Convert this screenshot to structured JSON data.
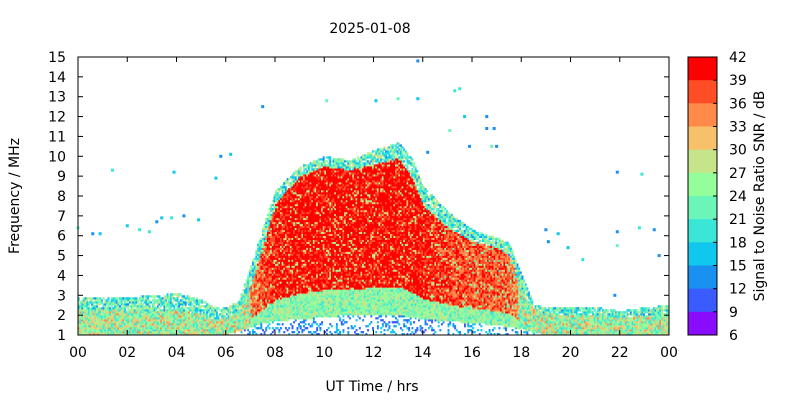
{
  "chart_data": {
    "type": "heatmap",
    "title": "2025-01-08",
    "xlabel": "UT Time / hrs",
    "ylabel": "Frequency / MHz",
    "xlim": [
      0,
      24
    ],
    "ylim": [
      1,
      15
    ],
    "x_ticks": [
      "00",
      "02",
      "04",
      "06",
      "08",
      "10",
      "12",
      "14",
      "16",
      "18",
      "20",
      "22",
      "00"
    ],
    "y_ticks": [
      "1",
      "2",
      "3",
      "4",
      "5",
      "6",
      "7",
      "8",
      "9",
      "10",
      "11",
      "12",
      "13",
      "14",
      "15"
    ],
    "colorbar": {
      "label": "Signal to Noise Ratio SNR / dB",
      "ticks": [
        "42",
        "39",
        "36",
        "33",
        "30",
        "27",
        "24",
        "21",
        "18",
        "15",
        "12",
        "9",
        "6"
      ],
      "range": [
        6,
        42
      ],
      "colors": [
        "#ff0000",
        "#ff4d26",
        "#ff8a4a",
        "#f7c06a",
        "#c6e48a",
        "#94ff9a",
        "#6cf5b8",
        "#3ae6d6",
        "#10c8ee",
        "#1a90f0",
        "#3a5cff",
        "#8a0cff"
      ]
    },
    "envelope": {
      "hours": [
        0,
        1,
        2,
        3,
        4,
        5,
        5.5,
        6,
        6.5,
        7,
        7.5,
        8,
        9,
        10,
        11,
        12,
        13,
        13.5,
        14,
        15,
        16,
        17,
        17.5,
        18,
        18.5,
        19,
        20,
        21,
        22,
        23,
        24
      ],
      "max_freq_mhz": [
        2.9,
        2.9,
        2.9,
        3.0,
        3.1,
        2.8,
        2.4,
        2.4,
        2.7,
        4.5,
        6.5,
        8.3,
        9.5,
        10.0,
        9.8,
        10.3,
        10.7,
        10.0,
        8.5,
        7.2,
        6.3,
        5.9,
        5.6,
        4.0,
        2.5,
        2.4,
        2.4,
        2.4,
        2.2,
        2.4,
        2.5
      ],
      "core_max_freq_mhz": [
        2.3,
        2.3,
        2.2,
        2.2,
        2.3,
        2.0,
        1.8,
        1.9,
        2.2,
        3.5,
        5.5,
        7.6,
        9.0,
        9.5,
        9.3,
        9.6,
        9.9,
        9.0,
        7.5,
        6.4,
        5.7,
        5.4,
        5.0,
        3.2,
        2.3,
        2.1,
        2.0,
        2.0,
        1.9,
        2.0,
        2.1
      ],
      "min_freq_mhz": [
        1.0,
        1.0,
        1.0,
        1.0,
        1.0,
        1.0,
        1.0,
        1.0,
        1.2,
        1.4,
        1.6,
        1.7,
        1.8,
        1.9,
        2.0,
        2.0,
        2.0,
        1.9,
        1.8,
        1.7,
        1.6,
        1.5,
        1.4,
        1.3,
        1.1,
        1.0,
        1.0,
        1.0,
        1.0,
        1.0,
        1.0
      ]
    },
    "scattered_echoes": [
      {
        "hour": 1.4,
        "freq_mhz": 9.3
      },
      {
        "hour": 3.9,
        "freq_mhz": 9.2
      },
      {
        "hour": 5.6,
        "freq_mhz": 8.9
      },
      {
        "hour": 5.8,
        "freq_mhz": 10.0
      },
      {
        "hour": 6.2,
        "freq_mhz": 10.1
      },
      {
        "hour": 7.5,
        "freq_mhz": 12.5
      },
      {
        "hour": 10.1,
        "freq_mhz": 12.8
      },
      {
        "hour": 12.1,
        "freq_mhz": 12.8
      },
      {
        "hour": 13.0,
        "freq_mhz": 12.9
      },
      {
        "hour": 13.8,
        "freq_mhz": 12.9
      },
      {
        "hour": 13.8,
        "freq_mhz": 14.8
      },
      {
        "hour": 15.3,
        "freq_mhz": 13.3
      },
      {
        "hour": 15.5,
        "freq_mhz": 13.4
      },
      {
        "hour": 15.1,
        "freq_mhz": 11.3
      },
      {
        "hour": 15.7,
        "freq_mhz": 12.0
      },
      {
        "hour": 16.6,
        "freq_mhz": 12.0
      },
      {
        "hour": 16.9,
        "freq_mhz": 11.4
      },
      {
        "hour": 16.6,
        "freq_mhz": 11.4
      },
      {
        "hour": 15.9,
        "freq_mhz": 10.5
      },
      {
        "hour": 16.8,
        "freq_mhz": 10.5
      },
      {
        "hour": 17.0,
        "freq_mhz": 10.5
      },
      {
        "hour": 14.2,
        "freq_mhz": 10.2
      },
      {
        "hour": 2.0,
        "freq_mhz": 6.5
      },
      {
        "hour": 2.5,
        "freq_mhz": 6.3
      },
      {
        "hour": 2.9,
        "freq_mhz": 6.2
      },
      {
        "hour": 3.2,
        "freq_mhz": 6.7
      },
      {
        "hour": 3.4,
        "freq_mhz": 6.9
      },
      {
        "hour": 3.8,
        "freq_mhz": 6.9
      },
      {
        "hour": 4.3,
        "freq_mhz": 7.0
      },
      {
        "hour": 4.9,
        "freq_mhz": 6.8
      },
      {
        "hour": 0.0,
        "freq_mhz": 6.4
      },
      {
        "hour": 0.6,
        "freq_mhz": 6.1
      },
      {
        "hour": 0.9,
        "freq_mhz": 6.1
      },
      {
        "hour": 19.0,
        "freq_mhz": 6.3
      },
      {
        "hour": 19.5,
        "freq_mhz": 6.1
      },
      {
        "hour": 19.1,
        "freq_mhz": 5.7
      },
      {
        "hour": 19.9,
        "freq_mhz": 5.4
      },
      {
        "hour": 20.5,
        "freq_mhz": 4.8
      },
      {
        "hour": 21.9,
        "freq_mhz": 6.2
      },
      {
        "hour": 21.9,
        "freq_mhz": 5.5
      },
      {
        "hour": 23.4,
        "freq_mhz": 6.3
      },
      {
        "hour": 23.6,
        "freq_mhz": 5.0
      },
      {
        "hour": 22.8,
        "freq_mhz": 6.4
      },
      {
        "hour": 21.8,
        "freq_mhz": 3.0
      },
      {
        "hour": 22.9,
        "freq_mhz": 9.1
      },
      {
        "hour": 21.9,
        "freq_mhz": 9.2
      }
    ]
  }
}
